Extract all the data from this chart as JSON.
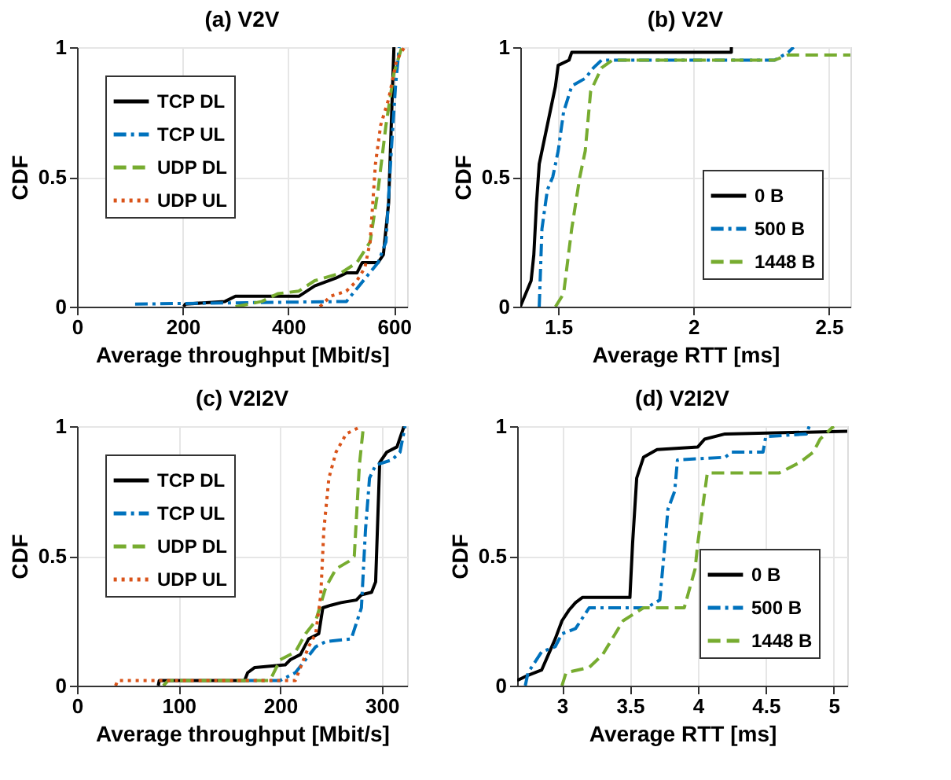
{
  "chart_data": [
    {
      "type": "line",
      "title": "(a) V2V",
      "xlabel": "Average throughput [Mbit/s]",
      "ylabel": "CDF",
      "xlim": [
        0,
        625
      ],
      "xticks": [
        0,
        200,
        400,
        600
      ],
      "ylim": [
        0,
        1
      ],
      "yticks": [
        0,
        0.5,
        1
      ],
      "grid": true,
      "legend": "top left",
      "series": [
        {
          "name": "TCP DL",
          "color": "#000000",
          "line_style": "solid",
          "x": [
            202,
            205,
            280,
            300,
            420,
            450,
            490,
            510,
            530,
            540,
            570,
            580,
            590,
            595,
            600
          ],
          "values": [
            0,
            0.01,
            0.02,
            0.04,
            0.04,
            0.08,
            0.11,
            0.13,
            0.13,
            0.17,
            0.17,
            0.2,
            0.4,
            0.7,
            1.0
          ]
        },
        {
          "name": "TCP UL",
          "color": "#0072bd",
          "line_style": "dashdot",
          "x": [
            110,
            510,
            530,
            570,
            585,
            595,
            603,
            610
          ],
          "values": [
            0.01,
            0.02,
            0.07,
            0.17,
            0.25,
            0.6,
            0.85,
            1.0
          ]
        },
        {
          "name": "UDP DL",
          "color": "#77ac30",
          "line_style": "dashed",
          "x": [
            300,
            350,
            380,
            420,
            450,
            500,
            530,
            555,
            570,
            585,
            600,
            615
          ],
          "values": [
            0,
            0.02,
            0.05,
            0.06,
            0.1,
            0.13,
            0.17,
            0.25,
            0.45,
            0.7,
            0.9,
            1.0
          ]
        },
        {
          "name": "UDP UL",
          "color": "#d95319",
          "line_style": "dotted",
          "x": [
            460,
            480,
            510,
            530,
            545,
            555,
            565,
            575,
            590,
            605,
            620
          ],
          "values": [
            0,
            0.04,
            0.06,
            0.1,
            0.15,
            0.25,
            0.55,
            0.7,
            0.8,
            0.95,
            1.0
          ]
        }
      ]
    },
    {
      "type": "line",
      "title": "(b) V2V",
      "xlabel": "Average RTT [ms]",
      "ylabel": "CDF",
      "xlim": [
        1.36,
        2.58
      ],
      "xticks": [
        1.5,
        2,
        2.5
      ],
      "ylim": [
        0,
        1
      ],
      "yticks": [
        0,
        0.5,
        1
      ],
      "grid": true,
      "legend": "bottom right",
      "series": [
        {
          "name": "0 B",
          "color": "#000000",
          "line_style": "solid",
          "x": [
            1.36,
            1.38,
            1.4,
            1.41,
            1.42,
            1.43,
            1.45,
            1.47,
            1.49,
            1.5,
            1.54,
            1.55,
            2.14,
            2.14
          ],
          "values": [
            0,
            0.05,
            0.1,
            0.2,
            0.4,
            0.55,
            0.65,
            0.75,
            0.85,
            0.93,
            0.95,
            0.98,
            0.98,
            1.0
          ]
        },
        {
          "name": "500 B",
          "color": "#0072bd",
          "line_style": "dashdot",
          "x": [
            1.43,
            1.44,
            1.46,
            1.48,
            1.5,
            1.52,
            1.55,
            1.6,
            1.63,
            1.66,
            2.3,
            2.35,
            2.37
          ],
          "values": [
            0,
            0.3,
            0.45,
            0.5,
            0.6,
            0.75,
            0.85,
            0.88,
            0.92,
            0.95,
            0.95,
            0.98,
            1.0
          ]
        },
        {
          "name": "1448 B",
          "color": "#77ac30",
          "line_style": "dashed",
          "x": [
            1.49,
            1.52,
            1.55,
            1.58,
            1.6,
            1.62,
            1.66,
            1.7,
            2.3,
            2.35,
            2.58
          ],
          "values": [
            0,
            0.05,
            0.3,
            0.5,
            0.6,
            0.83,
            0.92,
            0.95,
            0.95,
            0.97,
            0.97
          ]
        }
      ]
    },
    {
      "type": "line",
      "title": "(c) V2I2V",
      "xlabel": "Average throughput [Mbit/s]",
      "ylabel": "CDF",
      "xlim": [
        0,
        325
      ],
      "xticks": [
        0,
        100,
        200,
        300
      ],
      "ylim": [
        0,
        1
      ],
      "yticks": [
        0,
        0.5,
        1
      ],
      "grid": true,
      "legend": "top left",
      "series": [
        {
          "name": "TCP DL",
          "color": "#000000",
          "line_style": "solid",
          "x": [
            80,
            81,
            165,
            168,
            175,
            205,
            210,
            220,
            228,
            238,
            242,
            250,
            260,
            275,
            280,
            290,
            294,
            298,
            305,
            315,
            322
          ],
          "values": [
            0,
            0.02,
            0.02,
            0.05,
            0.07,
            0.08,
            0.1,
            0.12,
            0.18,
            0.2,
            0.3,
            0.31,
            0.32,
            0.33,
            0.35,
            0.36,
            0.4,
            0.86,
            0.9,
            0.92,
            1.0
          ]
        },
        {
          "name": "TCP UL",
          "color": "#0072bd",
          "line_style": "dashdot",
          "x": [
            165,
            200,
            215,
            225,
            235,
            245,
            270,
            280,
            284,
            288,
            294,
            310,
            318,
            323
          ],
          "values": [
            0.02,
            0.02,
            0.05,
            0.1,
            0.15,
            0.17,
            0.18,
            0.3,
            0.6,
            0.8,
            0.85,
            0.87,
            0.9,
            1.0
          ]
        },
        {
          "name": "UDP DL",
          "color": "#77ac30",
          "line_style": "dashed",
          "x": [
            85,
            90,
            190,
            200,
            215,
            225,
            235,
            245,
            255,
            268,
            273,
            278,
            282
          ],
          "values": [
            0,
            0.02,
            0.02,
            0.1,
            0.13,
            0.2,
            0.25,
            0.38,
            0.45,
            0.48,
            0.5,
            0.85,
            1.0
          ]
        },
        {
          "name": "UDP UL",
          "color": "#d95319",
          "line_style": "dotted",
          "x": [
            38,
            40,
            215,
            220,
            228,
            235,
            240,
            243,
            248,
            255,
            265,
            280
          ],
          "values": [
            0,
            0.02,
            0.02,
            0.07,
            0.15,
            0.2,
            0.35,
            0.6,
            0.8,
            0.9,
            0.97,
            1.0
          ]
        }
      ]
    },
    {
      "type": "line",
      "title": "(d) V2I2V",
      "xlabel": "Average RTT [ms]",
      "ylabel": "CDF",
      "xlim": [
        2.67,
        5.1
      ],
      "xticks": [
        3,
        3.5,
        4,
        4.5,
        5
      ],
      "ylim": [
        0,
        1
      ],
      "yticks": [
        0,
        0.5,
        1
      ],
      "grid": true,
      "legend": "bottom right",
      "series": [
        {
          "name": "0 B",
          "color": "#000000",
          "line_style": "solid",
          "x": [
            2.67,
            2.75,
            2.85,
            2.9,
            2.95,
            3.0,
            3.05,
            3.1,
            3.15,
            3.5,
            3.52,
            3.55,
            3.6,
            3.7,
            4.0,
            4.05,
            4.2,
            5.1
          ],
          "values": [
            0.02,
            0.04,
            0.06,
            0.12,
            0.18,
            0.25,
            0.29,
            0.32,
            0.34,
            0.34,
            0.55,
            0.8,
            0.88,
            0.91,
            0.92,
            0.95,
            0.97,
            0.98
          ]
        },
        {
          "name": "500 B",
          "color": "#0072bd",
          "line_style": "dashdot",
          "x": [
            2.73,
            2.75,
            2.85,
            2.95,
            3.0,
            3.1,
            3.2,
            3.62,
            3.72,
            3.75,
            3.78,
            3.83,
            3.85,
            4.2,
            4.25,
            4.48,
            4.5,
            4.8,
            4.82
          ],
          "values": [
            0,
            0.05,
            0.13,
            0.15,
            0.2,
            0.22,
            0.3,
            0.3,
            0.33,
            0.5,
            0.68,
            0.75,
            0.87,
            0.88,
            0.9,
            0.9,
            0.96,
            0.97,
            1.0
          ]
        },
        {
          "name": "1448 B",
          "color": "#77ac30",
          "line_style": "dashed",
          "x": [
            3.0,
            3.03,
            3.2,
            3.3,
            3.45,
            3.6,
            3.9,
            3.98,
            4.0,
            4.07,
            4.6,
            4.75,
            4.85,
            4.9,
            5.0
          ],
          "values": [
            0,
            0.05,
            0.07,
            0.12,
            0.25,
            0.3,
            0.3,
            0.45,
            0.55,
            0.82,
            0.82,
            0.86,
            0.9,
            0.95,
            1.0
          ]
        }
      ]
    }
  ]
}
